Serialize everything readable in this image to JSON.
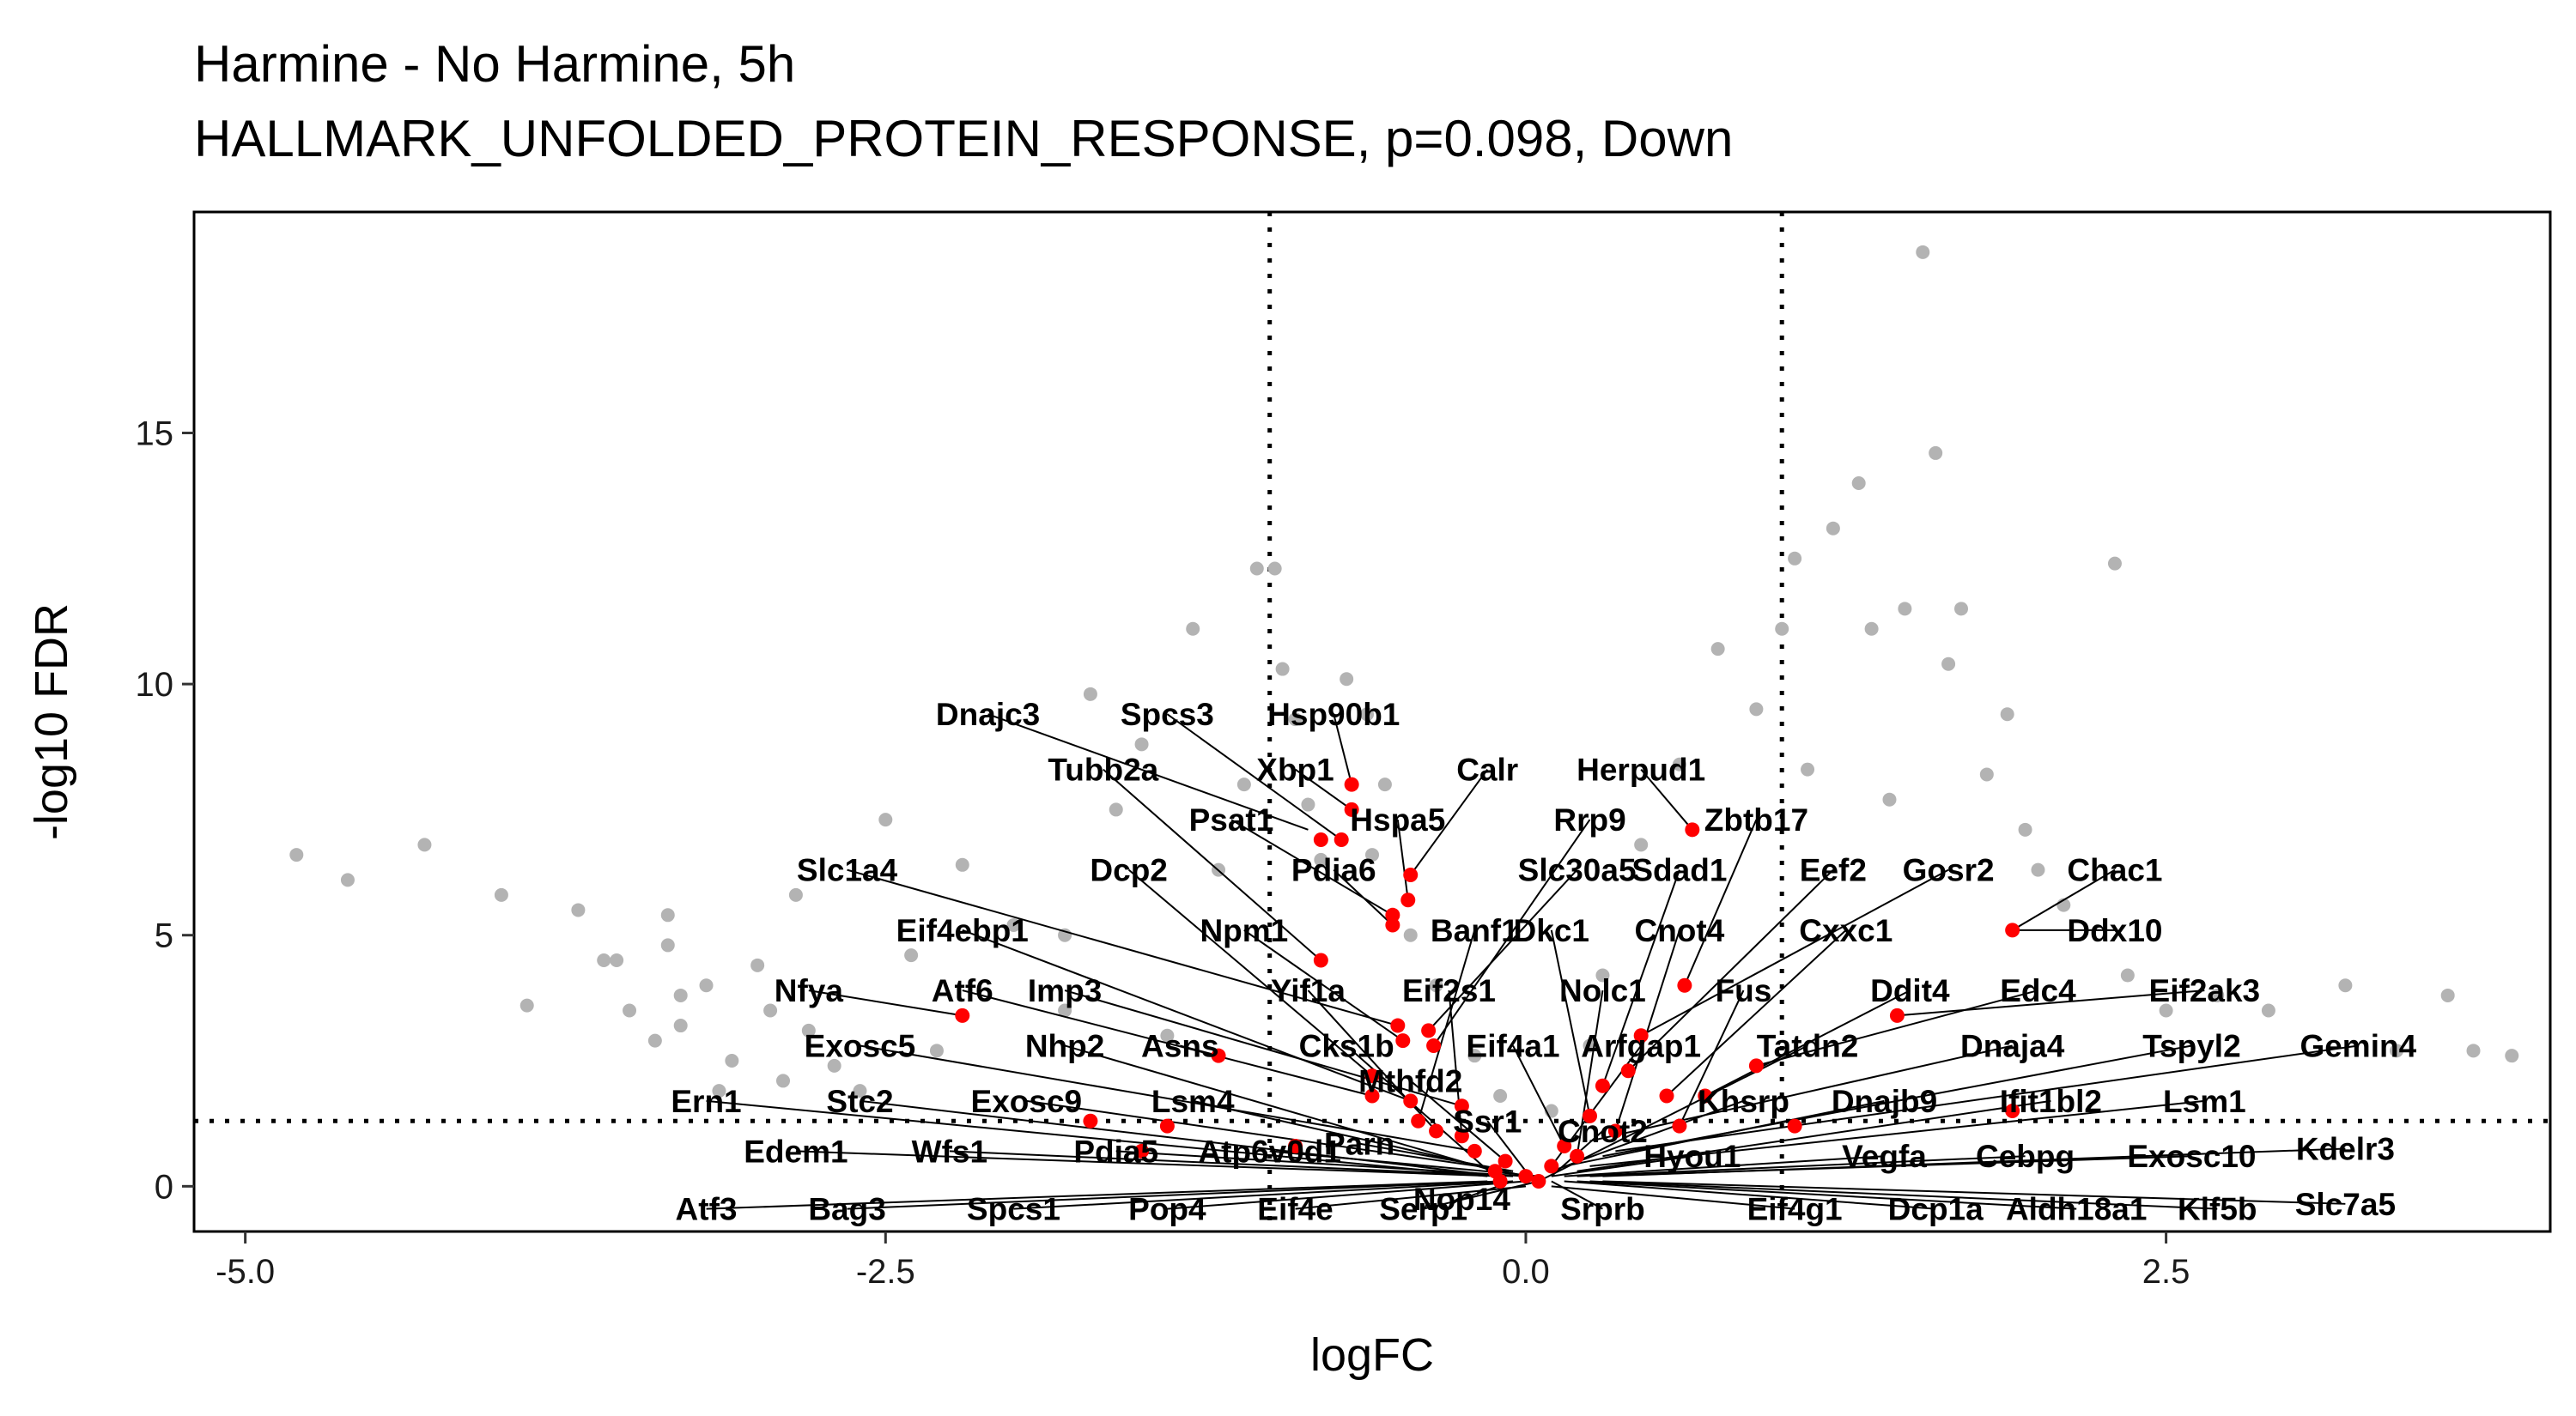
{
  "chart_data": {
    "type": "scatter",
    "title": "Harmine - No Harmine, 5h",
    "subtitle": "HALLMARK_UNFOLDED_PROTEIN_RESPONSE, p=0.098, Down",
    "xlabel": "logFC",
    "ylabel": "-log10 FDR",
    "xlim": [
      -5.2,
      4.0
    ],
    "ylim": [
      -0.9,
      19.4
    ],
    "xticks": [
      -5.0,
      -2.5,
      0.0,
      2.5
    ],
    "xtick_labels": [
      "-5.0",
      "-2.5",
      "0.0",
      "2.5"
    ],
    "yticks": [
      0,
      5,
      10,
      15
    ],
    "ytick_labels": [
      "0",
      "5",
      "10",
      "15"
    ],
    "grid": false,
    "legend": "none",
    "thresholds": {
      "logFC": [
        -1,
        1
      ],
      "neg_log10_fdr": 1.3
    },
    "colors": {
      "background_points": "#b3b3b3",
      "highlight_points": "#ff0000",
      "threshold_lines": "#000000"
    },
    "series": [
      {
        "name": "",
        "color": "#b3b3b3",
        "points": [
          [
            -4.8,
            6.6
          ],
          [
            -4.6,
            6.1
          ],
          [
            -4.3,
            6.8
          ],
          [
            -4.0,
            5.8
          ],
          [
            -3.9,
            3.6
          ],
          [
            -3.7,
            5.5
          ],
          [
            -3.6,
            4.5
          ],
          [
            -3.55,
            4.5
          ],
          [
            -3.5,
            3.5
          ],
          [
            -3.4,
            2.9
          ],
          [
            -3.35,
            5.4
          ],
          [
            -3.35,
            4.8
          ],
          [
            -3.3,
            3.8
          ],
          [
            -3.3,
            3.2
          ],
          [
            -3.2,
            4.0
          ],
          [
            -3.15,
            1.9
          ],
          [
            -3.1,
            2.5
          ],
          [
            -3.0,
            4.4
          ],
          [
            -2.95,
            3.5
          ],
          [
            -2.9,
            2.1
          ],
          [
            -2.85,
            5.8
          ],
          [
            -2.8,
            3.1
          ],
          [
            -2.7,
            2.4
          ],
          [
            -2.6,
            1.9
          ],
          [
            -2.5,
            7.3
          ],
          [
            -2.4,
            4.6
          ],
          [
            -2.3,
            2.7
          ],
          [
            -2.2,
            6.4
          ],
          [
            -2.0,
            5.2
          ],
          [
            -1.8,
            5.0
          ],
          [
            -1.8,
            3.5
          ],
          [
            -1.7,
            9.8
          ],
          [
            -1.6,
            7.5
          ],
          [
            -1.5,
            8.8
          ],
          [
            -1.4,
            3.0
          ],
          [
            -1.3,
            11.1
          ],
          [
            -1.2,
            6.3
          ],
          [
            -1.1,
            8.0
          ],
          [
            -1.05,
            12.3
          ],
          [
            -0.98,
            12.3
          ],
          [
            -0.95,
            10.3
          ],
          [
            -0.9,
            9.3
          ],
          [
            -0.85,
            7.6
          ],
          [
            -0.8,
            6.5
          ],
          [
            -0.7,
            10.1
          ],
          [
            -0.62,
            9.4
          ],
          [
            -0.6,
            6.6
          ],
          [
            -0.55,
            8.0
          ],
          [
            -0.45,
            5.0
          ],
          [
            -0.35,
            4.0
          ],
          [
            -0.2,
            2.6
          ],
          [
            -0.1,
            1.8
          ],
          [
            0.1,
            1.5
          ],
          [
            0.25,
            2.8
          ],
          [
            0.3,
            4.2
          ],
          [
            0.45,
            6.8
          ],
          [
            0.6,
            8.4
          ],
          [
            0.75,
            10.7
          ],
          [
            0.9,
            9.5
          ],
          [
            1.0,
            11.1
          ],
          [
            1.05,
            12.5
          ],
          [
            1.1,
            8.3
          ],
          [
            1.2,
            13.1
          ],
          [
            1.3,
            14.0
          ],
          [
            1.35,
            11.1
          ],
          [
            1.42,
            7.7
          ],
          [
            1.48,
            11.5
          ],
          [
            1.55,
            18.6
          ],
          [
            1.6,
            14.6
          ],
          [
            1.65,
            10.4
          ],
          [
            1.7,
            11.5
          ],
          [
            1.8,
            8.2
          ],
          [
            1.88,
            9.4
          ],
          [
            1.95,
            7.1
          ],
          [
            2.0,
            6.3
          ],
          [
            2.1,
            5.6
          ],
          [
            2.3,
            12.4
          ],
          [
            2.35,
            4.2
          ],
          [
            2.5,
            3.5
          ],
          [
            2.7,
            3.8
          ],
          [
            2.9,
            3.5
          ],
          [
            3.2,
            4.0
          ],
          [
            3.4,
            2.7
          ],
          [
            3.6,
            3.8
          ],
          [
            3.7,
            2.7
          ],
          [
            3.85,
            2.6
          ]
        ]
      },
      {
        "name": "",
        "color": "#ff0000",
        "points": [
          [
            -0.68,
            8.0
          ],
          [
            -0.68,
            7.5
          ],
          [
            -0.8,
            6.9
          ],
          [
            -0.72,
            6.9
          ],
          [
            -0.45,
            6.2
          ],
          [
            -0.46,
            5.7
          ],
          [
            -0.52,
            5.4
          ],
          [
            -0.52,
            5.2
          ],
          [
            -0.8,
            4.5
          ],
          [
            -0.5,
            3.2
          ],
          [
            -0.48,
            2.9
          ],
          [
            -0.38,
            3.1
          ],
          [
            -0.36,
            2.8
          ],
          [
            -0.6,
            2.2
          ],
          [
            -0.45,
            1.7
          ],
          [
            -0.6,
            1.8
          ],
          [
            -0.42,
            1.3
          ],
          [
            -0.25,
            1.6
          ],
          [
            -0.25,
            1.0
          ],
          [
            -0.35,
            1.1
          ],
          [
            -0.2,
            0.7
          ],
          [
            -0.12,
            0.3
          ],
          [
            -0.1,
            0.1
          ],
          [
            -0.08,
            0.5
          ],
          [
            0.0,
            0.2
          ],
          [
            0.05,
            0.1
          ],
          [
            0.1,
            0.4
          ],
          [
            0.15,
            0.8
          ],
          [
            0.2,
            0.6
          ],
          [
            0.25,
            1.4
          ],
          [
            0.3,
            2.0
          ],
          [
            0.35,
            1.1
          ],
          [
            0.4,
            2.3
          ],
          [
            0.45,
            3.0
          ],
          [
            0.55,
            1.8
          ],
          [
            0.6,
            1.2
          ],
          [
            0.62,
            4.0
          ],
          [
            0.65,
            7.1
          ],
          [
            0.7,
            1.8
          ],
          [
            0.9,
            2.4
          ],
          [
            1.05,
            1.2
          ],
          [
            1.45,
            3.4
          ],
          [
            1.9,
            5.1
          ],
          [
            1.9,
            1.5
          ],
          [
            -1.2,
            2.6
          ],
          [
            -1.4,
            1.2
          ],
          [
            -1.7,
            1.3
          ],
          [
            -2.2,
            3.4
          ],
          [
            -1.5,
            0.7
          ],
          [
            -0.9,
            0.8
          ]
        ]
      }
    ],
    "annotations": [
      {
        "text": "Dnajc3",
        "x": -2.1,
        "y": 9.4,
        "px": -0.85,
        "py": 7.1
      },
      {
        "text": "Spcs3",
        "x": -1.4,
        "y": 9.4,
        "px": -0.72,
        "py": 6.9
      },
      {
        "text": "Hsp90b1",
        "x": -0.75,
        "y": 9.4,
        "px": -0.68,
        "py": 8.0
      },
      {
        "text": "Calr",
        "x": -0.15,
        "y": 8.3,
        "px": -0.45,
        "py": 6.2
      },
      {
        "text": "Xbp1",
        "x": -0.9,
        "y": 8.3,
        "px": -0.68,
        "py": 7.5
      },
      {
        "text": "Tubb2a",
        "x": -1.65,
        "y": 8.3,
        "px": -0.8,
        "py": 4.5
      },
      {
        "text": "Herpud1",
        "x": 0.45,
        "y": 8.3,
        "px": 0.65,
        "py": 7.1
      },
      {
        "text": "Hspa5",
        "x": -0.5,
        "y": 7.3,
        "px": -0.46,
        "py": 5.7
      },
      {
        "text": "Psat1",
        "x": -1.15,
        "y": 7.3,
        "px": -0.52,
        "py": 5.4
      },
      {
        "text": "Rrp9",
        "x": 0.25,
        "y": 7.3,
        "px": -0.36,
        "py": 2.8
      },
      {
        "text": "Zbtb17",
        "x": 0.9,
        "y": 7.3,
        "px": 0.62,
        "py": 4.0
      },
      {
        "text": "Pdia6",
        "x": -0.75,
        "y": 6.3,
        "px": -0.52,
        "py": 5.2
      },
      {
        "text": "Slc30a5",
        "x": 0.2,
        "y": 6.3,
        "px": -0.38,
        "py": 3.1
      },
      {
        "text": "Sdad1",
        "x": 0.6,
        "y": 6.3,
        "px": 0.3,
        "py": 2.0
      },
      {
        "text": "Eef2",
        "x": 1.2,
        "y": 6.3,
        "px": 0.4,
        "py": 2.3
      },
      {
        "text": "Gosr2",
        "x": 1.65,
        "y": 6.3,
        "px": 0.45,
        "py": 3.0
      },
      {
        "text": "Chac1",
        "x": 2.3,
        "y": 6.3,
        "px": 1.9,
        "py": 5.1
      },
      {
        "text": "Slc1a4",
        "x": -2.65,
        "y": 6.3,
        "px": -0.5,
        "py": 3.2
      },
      {
        "text": "Dcp2",
        "x": -1.55,
        "y": 6.3,
        "px": -0.6,
        "py": 2.2
      },
      {
        "text": "Eif4ebp1",
        "x": -2.2,
        "y": 5.1,
        "px": -0.45,
        "py": 1.7
      },
      {
        "text": "Npm1",
        "x": -1.1,
        "y": 5.1,
        "px": -0.48,
        "py": 2.9
      },
      {
        "text": "Banf1",
        "x": -0.2,
        "y": 5.1,
        "px": -0.42,
        "py": 1.3
      },
      {
        "text": "Dkc1",
        "x": 0.1,
        "y": 5.1,
        "px": 0.25,
        "py": 1.4
      },
      {
        "text": "Cnot4",
        "x": 0.6,
        "y": 5.1,
        "px": 0.35,
        "py": 1.1
      },
      {
        "text": "Cxxc1",
        "x": 1.25,
        "y": 5.1,
        "px": 0.55,
        "py": 1.8
      },
      {
        "text": "Ddx10",
        "x": 2.3,
        "y": 5.1,
        "px": 1.9,
        "py": 5.1
      },
      {
        "text": "Nfya",
        "x": -2.8,
        "y": 3.9,
        "px": -2.2,
        "py": 3.4
      },
      {
        "text": "Atf6",
        "x": -2.2,
        "y": 3.9,
        "px": -0.6,
        "py": 1.8
      },
      {
        "text": "Imp3",
        "x": -1.8,
        "y": 3.9,
        "px": -0.25,
        "py": 1.6
      },
      {
        "text": "Yif1a",
        "x": -0.85,
        "y": 3.9,
        "px": -0.35,
        "py": 1.1
      },
      {
        "text": "Eif2s1",
        "x": -0.3,
        "y": 3.9,
        "px": -0.25,
        "py": 1.0
      },
      {
        "text": "Nolc1",
        "x": 0.3,
        "y": 3.9,
        "px": 0.2,
        "py": 0.6
      },
      {
        "text": "Fus",
        "x": 0.85,
        "y": 3.9,
        "px": 0.6,
        "py": 1.2
      },
      {
        "text": "Ddit4",
        "x": 1.5,
        "y": 3.9,
        "px": 0.7,
        "py": 1.8
      },
      {
        "text": "Edc4",
        "x": 2.0,
        "y": 3.9,
        "px": 0.9,
        "py": 2.4
      },
      {
        "text": "Eif2ak3",
        "x": 2.65,
        "y": 3.9,
        "px": 1.45,
        "py": 3.4
      },
      {
        "text": "Exosc5",
        "x": -2.6,
        "y": 2.8,
        "px": -0.2,
        "py": 0.7
      },
      {
        "text": "Nhp2",
        "x": -1.8,
        "y": 2.8,
        "px": -0.12,
        "py": 0.3
      },
      {
        "text": "Asns",
        "x": -1.35,
        "y": 2.8,
        "px": -1.2,
        "py": 2.6
      },
      {
        "text": "Cks1b",
        "x": -0.7,
        "y": 2.8,
        "px": -0.1,
        "py": 0.1
      },
      {
        "text": "Eif4a1",
        "x": -0.05,
        "y": 2.8,
        "px": 0.15,
        "py": 0.8
      },
      {
        "text": "Arfgap1",
        "x": 0.45,
        "y": 2.8,
        "px": 0.1,
        "py": 0.4
      },
      {
        "text": "Tatdn2",
        "x": 1.1,
        "y": 2.8,
        "px": 0.05,
        "py": 0.1
      },
      {
        "text": "Dnaja4",
        "x": 1.9,
        "y": 2.8,
        "px": 0.25,
        "py": 0.9
      },
      {
        "text": "Tspyl2",
        "x": 2.6,
        "y": 2.8,
        "px": 0.3,
        "py": 0.6
      },
      {
        "text": "Gemin4",
        "x": 3.25,
        "y": 2.8,
        "px": 0.35,
        "py": 0.7
      },
      {
        "text": "Mthfd2",
        "x": -0.45,
        "y": 2.1,
        "px": -0.08,
        "py": 0.5
      },
      {
        "text": "Ern1",
        "x": -3.2,
        "y": 1.7,
        "px": -0.15,
        "py": 0.2
      },
      {
        "text": "Stc2",
        "x": -2.6,
        "y": 1.7,
        "px": -0.1,
        "py": 0.2
      },
      {
        "text": "Exosc9",
        "x": -1.95,
        "y": 1.7,
        "px": -0.05,
        "py": 0.3
      },
      {
        "text": "Lsm4",
        "x": -1.3,
        "y": 1.7,
        "px": 0.0,
        "py": 0.2
      },
      {
        "text": "Khsrp",
        "x": 0.85,
        "y": 1.7,
        "px": 0.1,
        "py": 0.3
      },
      {
        "text": "Dnajb9",
        "x": 1.4,
        "y": 1.7,
        "px": 0.15,
        "py": 0.4
      },
      {
        "text": "Ifit1bl2",
        "x": 2.05,
        "y": 1.7,
        "px": 0.2,
        "py": 0.3
      },
      {
        "text": "Lsm1",
        "x": 2.65,
        "y": 1.7,
        "px": 0.25,
        "py": 0.4
      },
      {
        "text": "Ssr1",
        "x": -0.15,
        "y": 1.3,
        "px": 0.0,
        "py": 0.3
      },
      {
        "text": "Cnot2",
        "x": 0.3,
        "y": 1.1,
        "px": 0.1,
        "py": 0.2
      },
      {
        "text": "Edem1",
        "x": -2.85,
        "y": 0.7,
        "px": -0.1,
        "py": 0.2
      },
      {
        "text": "Wfs1",
        "x": -2.25,
        "y": 0.7,
        "px": -0.05,
        "py": 0.2
      },
      {
        "text": "Pdia5",
        "x": -1.6,
        "y": 0.7,
        "px": 0.0,
        "py": 0.2
      },
      {
        "text": "Atp6v0d1",
        "x": -1.0,
        "y": 0.7,
        "px": 0.05,
        "py": 0.2
      },
      {
        "text": "Parn",
        "x": -0.65,
        "y": 0.85,
        "px": -0.05,
        "py": 0.3
      },
      {
        "text": "Hyou1",
        "x": 0.65,
        "y": 0.6,
        "px": 0.1,
        "py": 0.2
      },
      {
        "text": "Vegfa",
        "x": 1.4,
        "y": 0.6,
        "px": 0.15,
        "py": 0.2
      },
      {
        "text": "Cebpg",
        "x": 1.95,
        "y": 0.6,
        "px": 0.2,
        "py": 0.2
      },
      {
        "text": "Exosc10",
        "x": 2.6,
        "y": 0.6,
        "px": 0.25,
        "py": 0.2
      },
      {
        "text": "Kdelr3",
        "x": 3.2,
        "y": 0.75,
        "px": 0.3,
        "py": 0.2
      },
      {
        "text": "Nop14",
        "x": -0.25,
        "y": -0.25,
        "px": -0.05,
        "py": 0.1
      },
      {
        "text": "Atf3",
        "x": -3.2,
        "y": -0.45,
        "px": -0.15,
        "py": 0.1
      },
      {
        "text": "Bag3",
        "x": -2.65,
        "y": -0.45,
        "px": -0.1,
        "py": 0.1
      },
      {
        "text": "Spcs1",
        "x": -2.0,
        "y": -0.45,
        "px": -0.05,
        "py": 0.1
      },
      {
        "text": "Pop4",
        "x": -1.4,
        "y": -0.45,
        "px": 0.0,
        "py": 0.1
      },
      {
        "text": "Eif4e",
        "x": -0.9,
        "y": -0.45,
        "px": 0.0,
        "py": 0.0
      },
      {
        "text": "Serp1",
        "x": -0.4,
        "y": -0.45,
        "px": 0.05,
        "py": 0.1
      },
      {
        "text": "Srprb",
        "x": 0.3,
        "y": -0.45,
        "px": 0.1,
        "py": 0.1
      },
      {
        "text": "Eif4g1",
        "x": 1.05,
        "y": -0.45,
        "px": 0.1,
        "py": 0.0
      },
      {
        "text": "Dcp1a",
        "x": 1.6,
        "y": -0.45,
        "px": 0.15,
        "py": 0.1
      },
      {
        "text": "Aldh18a1",
        "x": 2.15,
        "y": -0.45,
        "px": 0.2,
        "py": 0.1
      },
      {
        "text": "Klf5b",
        "x": 2.7,
        "y": -0.45,
        "px": 0.25,
        "py": 0.1
      },
      {
        "text": "Slc7a5",
        "x": 3.2,
        "y": -0.35,
        "px": 0.3,
        "py": 0.1
      }
    ]
  }
}
